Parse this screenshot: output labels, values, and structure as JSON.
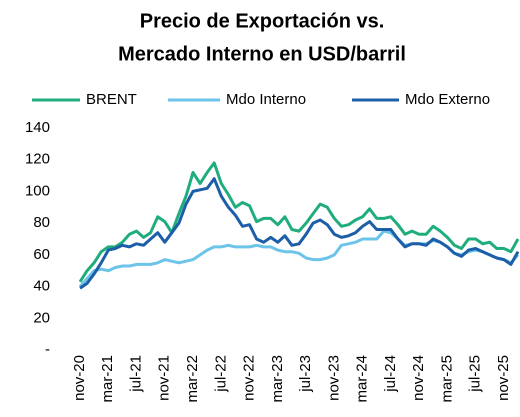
{
  "chart_data": {
    "type": "line",
    "title": [
      "Precio de Exportación vs.",
      "Mercado Interno en USD/barril"
    ],
    "categories": [
      "nov-20",
      null,
      null,
      null,
      "mar-21",
      null,
      null,
      null,
      "jul-21",
      null,
      null,
      null,
      "nov-21",
      null,
      null,
      null,
      "mar-22",
      null,
      null,
      null,
      "jul-22",
      null,
      null,
      null,
      "nov-22",
      null,
      null,
      null,
      "mar-23",
      null,
      null,
      null,
      "jul-23",
      null,
      null,
      null,
      "nov-23",
      null,
      null,
      null,
      "mar-24",
      null,
      null,
      null,
      "jul-24",
      null,
      null,
      null,
      "nov-24",
      null,
      null,
      null,
      "mar-25",
      null,
      null,
      null,
      "jul-25",
      null,
      null,
      null,
      "nov-25",
      null,
      null
    ],
    "series": [
      {
        "name": "BRENT",
        "color": "#20ad7e",
        "values": [
          43,
          50,
          55,
          62,
          65,
          65,
          68,
          73,
          75,
          71,
          74,
          84,
          81,
          74,
          86,
          97,
          112,
          105,
          112,
          118,
          105,
          98,
          90,
          93,
          91,
          81,
          83,
          83,
          79,
          84,
          76,
          75,
          80,
          86,
          92,
          90,
          83,
          78,
          79,
          82,
          84,
          89,
          83,
          83,
          84,
          79,
          73,
          75,
          73,
          73,
          78,
          75,
          71,
          66,
          64,
          70,
          70,
          67,
          68,
          64,
          64,
          62,
          70
        ]
      },
      {
        "name": "Mdo Interno",
        "color": "#6cc4ea",
        "values": [
          40,
          45,
          50,
          51,
          50,
          52,
          53,
          53,
          54,
          54,
          54,
          55,
          57,
          56,
          55,
          56,
          57,
          60,
          63,
          65,
          65,
          66,
          65,
          65,
          65,
          66,
          65,
          65,
          63,
          62,
          62,
          61,
          58,
          57,
          57,
          58,
          60,
          66,
          67,
          68,
          70,
          70,
          70,
          75,
          74,
          70,
          66,
          67,
          67,
          67,
          69,
          68,
          65,
          61,
          60,
          62,
          63,
          62,
          60,
          58,
          57,
          55,
          60
        ]
      },
      {
        "name": "Mdo Externo",
        "color": "#1d5ea8",
        "values": [
          39,
          42,
          48,
          55,
          63,
          64,
          66,
          65,
          67,
          66,
          70,
          74,
          68,
          74,
          80,
          92,
          100,
          101,
          102,
          108,
          97,
          90,
          85,
          78,
          79,
          70,
          68,
          71,
          68,
          72,
          66,
          67,
          73,
          80,
          82,
          79,
          73,
          71,
          72,
          74,
          78,
          81,
          76,
          76,
          76,
          70,
          65,
          67,
          67,
          66,
          70,
          68,
          65,
          61,
          59,
          63,
          64,
          62,
          60,
          58,
          57,
          54,
          62
        ]
      }
    ],
    "ylim": [
      0,
      140
    ],
    "yticks": [
      {
        "value": 0,
        "label": "-"
      },
      20,
      40,
      60,
      80,
      100,
      120,
      140
    ],
    "legend": "top"
  }
}
